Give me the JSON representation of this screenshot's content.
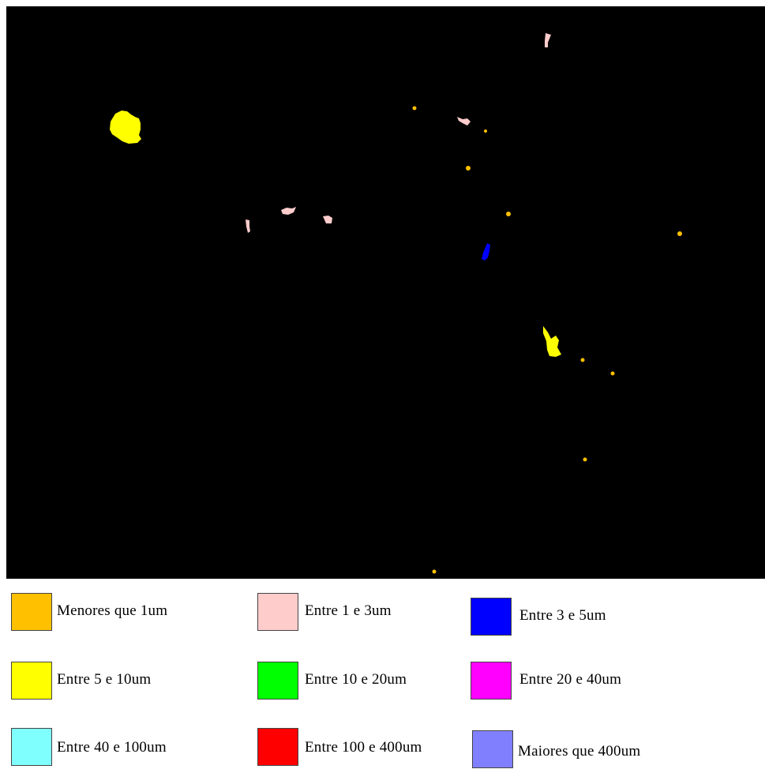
{
  "image": {
    "background_color": "#000000",
    "particle_colors": {
      "lt1": "#FFC000",
      "1to3": "#FFCCCC",
      "3to5": "#0000FF",
      "5to10": "#FFFF00"
    }
  },
  "legend": {
    "items": [
      {
        "key": "lt1",
        "label": "Menores que 1um",
        "color": "#FFC000"
      },
      {
        "key": "1to3",
        "label": "Entre 1 e 3um",
        "color": "#FFCCCC"
      },
      {
        "key": "3to5",
        "label": "Entre 3 e 5um",
        "color": "#0000FF"
      },
      {
        "key": "5to10",
        "label": "Entre 5 e 10um",
        "color": "#FFFF00"
      },
      {
        "key": "10to20",
        "label": "Entre 10 e 20um",
        "color": "#00FF00"
      },
      {
        "key": "20to40",
        "label": "Entre 20 e 40um",
        "color": "#FF00FF"
      },
      {
        "key": "40to100",
        "label": "Entre 40 e 100um",
        "color": "#80FFFF"
      },
      {
        "key": "100to400",
        "label": "Entre 100 e 400um",
        "color": "#FF0000"
      },
      {
        "key": "gt400",
        "label": "Maiores que 400um",
        "color": "#8080FF"
      }
    ]
  }
}
